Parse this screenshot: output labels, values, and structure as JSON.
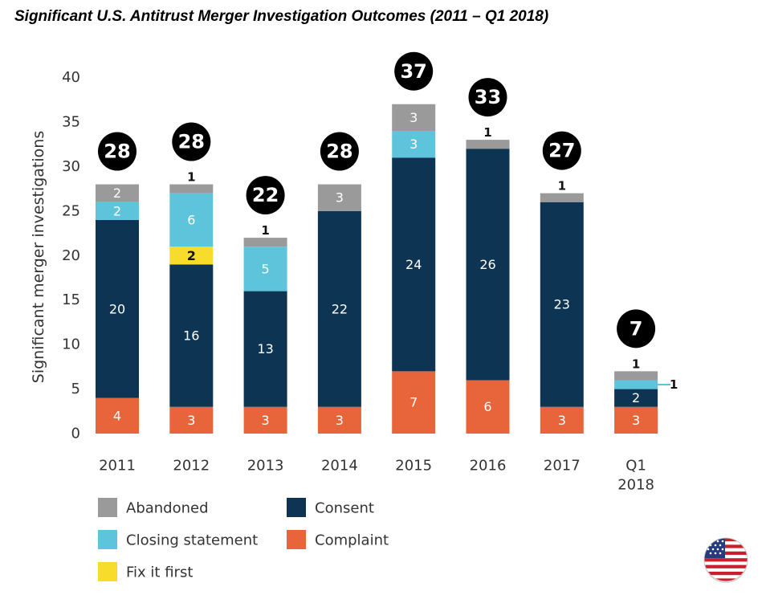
{
  "chart_data": {
    "type": "bar",
    "stacked": true,
    "title": "Significant U.S. Antitrust Merger Investigation Outcomes (2011 – Q1 2018)",
    "ylabel": "Significant merger investigations",
    "xlabel": "",
    "ylim": [
      0,
      40
    ],
    "yticks": [
      0,
      5,
      10,
      15,
      20,
      25,
      30,
      35,
      40
    ],
    "categories": [
      "2011",
      "2012",
      "2013",
      "2014",
      "2015",
      "2016",
      "2017",
      "Q1\n2018"
    ],
    "totals": [
      28,
      28,
      22,
      28,
      37,
      33,
      27,
      7
    ],
    "series": [
      {
        "name": "Complaint",
        "color": "#e8643a",
        "values": [
          4,
          3,
          3,
          3,
          7,
          6,
          3,
          3
        ]
      },
      {
        "name": "Consent",
        "color": "#0d3553",
        "values": [
          20,
          16,
          13,
          22,
          24,
          26,
          23,
          2
        ]
      },
      {
        "name": "Fix it first",
        "color": "#f7dc2b",
        "values": [
          0,
          2,
          0,
          0,
          0,
          0,
          0,
          0
        ]
      },
      {
        "name": "Closing statement",
        "color": "#5ec4dc",
        "values": [
          2,
          6,
          5,
          0,
          3,
          0,
          0,
          1
        ]
      },
      {
        "name": "Abandoned",
        "color": "#9a9a9a",
        "values": [
          2,
          1,
          1,
          3,
          3,
          1,
          1,
          1
        ]
      }
    ],
    "legend": [
      {
        "name": "Abandoned",
        "color": "#9a9a9a"
      },
      {
        "name": "Consent",
        "color": "#0d3553"
      },
      {
        "name": "Closing statement",
        "color": "#5ec4dc"
      },
      {
        "name": "Complaint",
        "color": "#e8643a"
      },
      {
        "name": "Fix it first",
        "color": "#f7dc2b"
      }
    ],
    "legend_position": "bottom-left"
  },
  "badge": {
    "icon": "us-flag-icon"
  }
}
